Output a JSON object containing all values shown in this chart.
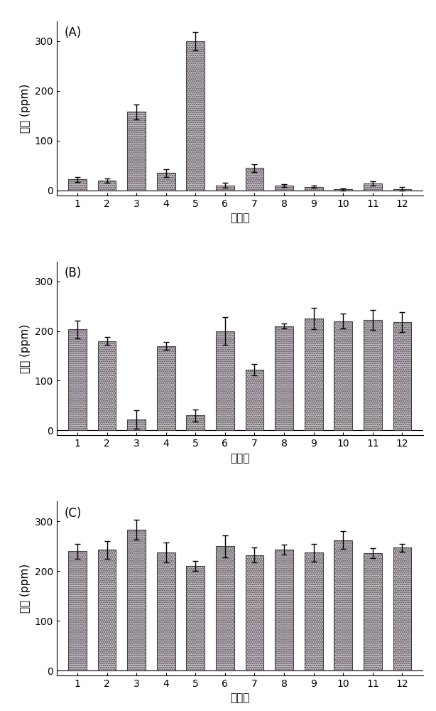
{
  "panel_A": {
    "label": "(A)",
    "values": [
      22,
      20,
      158,
      35,
      300,
      10,
      45,
      10,
      7,
      2,
      14,
      3
    ],
    "errors": [
      5,
      4,
      15,
      8,
      18,
      5,
      8,
      3,
      2,
      2,
      4,
      3
    ],
    "ylim": [
      -10,
      340
    ],
    "yticks": [
      0,
      100,
      200,
      300
    ]
  },
  "panel_B": {
    "label": "(B)",
    "values": [
      203,
      180,
      22,
      170,
      30,
      200,
      122,
      210,
      225,
      220,
      222,
      218
    ],
    "errors": [
      18,
      8,
      18,
      8,
      12,
      28,
      12,
      5,
      22,
      15,
      20,
      20
    ],
    "ylim": [
      -10,
      340
    ],
    "yticks": [
      0,
      100,
      200,
      300
    ]
  },
  "panel_C": {
    "label": "(C)",
    "values": [
      240,
      243,
      283,
      238,
      210,
      250,
      232,
      243,
      237,
      262,
      236,
      247
    ],
    "errors": [
      15,
      18,
      20,
      20,
      10,
      22,
      15,
      10,
      18,
      18,
      10,
      8
    ],
    "ylim": [
      -10,
      340
    ],
    "yticks": [
      0,
      100,
      200,
      300
    ]
  },
  "categories": [
    "1",
    "2",
    "3",
    "4",
    "5",
    "6",
    "7",
    "8",
    "9",
    "10",
    "11",
    "12"
  ],
  "bar_color": "#c8bec8",
  "bar_edgecolor": "#444444",
  "xlabel": "化合物",
  "ylabel": "响应 (ppm)",
  "ylabel_fontsize": 11,
  "xlabel_fontsize": 11,
  "tick_fontsize": 10,
  "label_fontsize": 12,
  "ecolor": "black",
  "capsize": 3,
  "bar_linewidth": 0.8,
  "background_color": "#ffffff"
}
